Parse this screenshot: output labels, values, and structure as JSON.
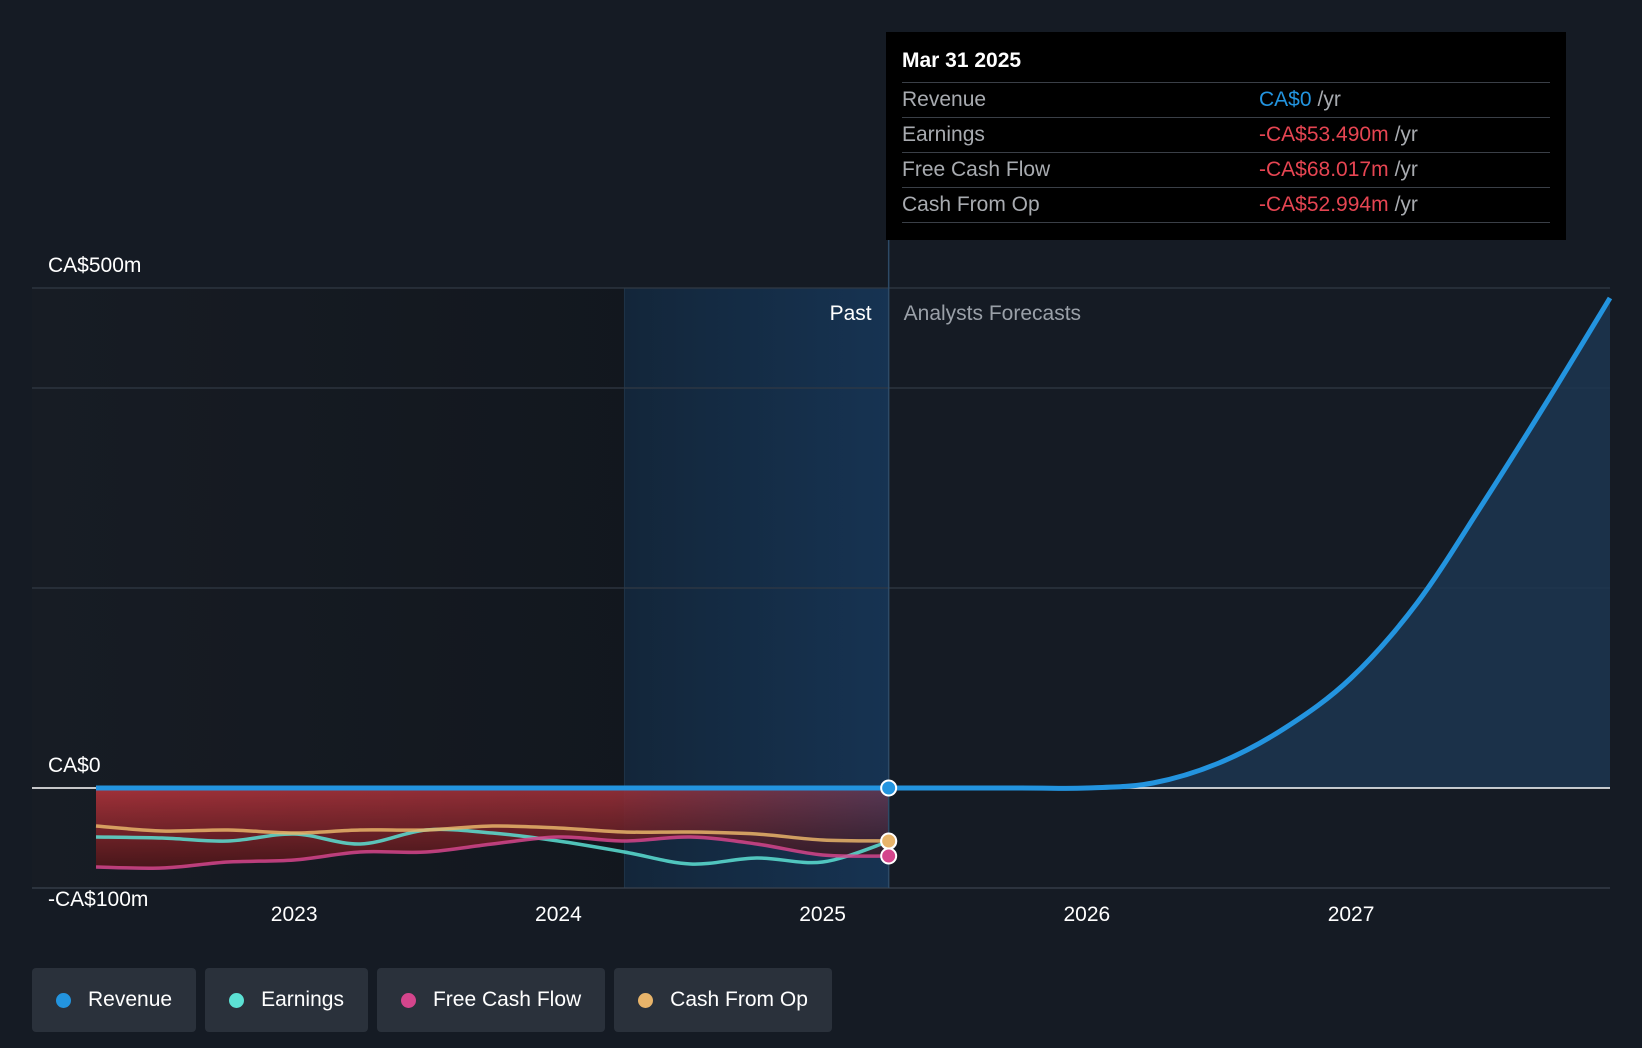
{
  "tooltip": {
    "date": "Mar 31 2025",
    "rows": [
      {
        "label": "Revenue",
        "value": "CA$0",
        "unit": "/yr",
        "color": "#2394df"
      },
      {
        "label": "Earnings",
        "value": "-CA$53.490m",
        "unit": "/yr",
        "color": "#e64552"
      },
      {
        "label": "Free Cash Flow",
        "value": "-CA$68.017m",
        "unit": "/yr",
        "color": "#e64552"
      },
      {
        "label": "Cash From Op",
        "value": "-CA$52.994m",
        "unit": "/yr",
        "color": "#e64552"
      }
    ]
  },
  "legend": [
    {
      "label": "Revenue",
      "color": "#2394df"
    },
    {
      "label": "Earnings",
      "color": "#5ce1d4"
    },
    {
      "label": "Free Cash Flow",
      "color": "#d4458c"
    },
    {
      "label": "Cash From Op",
      "color": "#e8b46a"
    }
  ],
  "chart_data": {
    "type": "line",
    "y_axis_labels": [
      "CA$500m",
      "CA$0",
      "-CA$100m"
    ],
    "ylim": [
      -100,
      500
    ],
    "xlim": [
      2022.25,
      2027.98
    ],
    "x_ticks": [
      2023,
      2024,
      2025,
      2026,
      2027
    ],
    "x_tick_labels": [
      "2023",
      "2024",
      "2025",
      "2026",
      "2027"
    ],
    "past_label": "Past",
    "forecast_label": "Analysts Forecasts",
    "current_date": 2025.25,
    "highlight_start": 2024.25,
    "grid": true,
    "legend_position": "bottom",
    "series": [
      {
        "name": "Revenue",
        "color": "#2394df",
        "points": [
          [
            2022.25,
            0
          ],
          [
            2023.0,
            0
          ],
          [
            2024.0,
            0
          ],
          [
            2025.25,
            0
          ],
          [
            2025.75,
            0
          ],
          [
            2026.0,
            0
          ],
          [
            2026.25,
            5
          ],
          [
            2026.5,
            25
          ],
          [
            2026.75,
            60
          ],
          [
            2027.0,
            110
          ],
          [
            2027.25,
            185
          ],
          [
            2027.5,
            285
          ],
          [
            2027.75,
            390
          ],
          [
            2027.98,
            490
          ]
        ]
      },
      {
        "name": "Earnings",
        "color": "#5ce1d4",
        "points": [
          [
            2022.25,
            -49
          ],
          [
            2022.5,
            -50
          ],
          [
            2022.75,
            -53
          ],
          [
            2023.0,
            -46
          ],
          [
            2023.25,
            -56
          ],
          [
            2023.5,
            -42
          ],
          [
            2023.75,
            -45
          ],
          [
            2024.0,
            -53
          ],
          [
            2024.25,
            -64
          ],
          [
            2024.5,
            -76
          ],
          [
            2024.75,
            -70
          ],
          [
            2025.0,
            -74
          ],
          [
            2025.25,
            -53.49
          ]
        ]
      },
      {
        "name": "Free Cash Flow",
        "color": "#d4458c",
        "points": [
          [
            2022.25,
            -79
          ],
          [
            2022.5,
            -80
          ],
          [
            2022.75,
            -74
          ],
          [
            2023.0,
            -72
          ],
          [
            2023.25,
            -64
          ],
          [
            2023.5,
            -64
          ],
          [
            2023.75,
            -56
          ],
          [
            2024.0,
            -49
          ],
          [
            2024.25,
            -53
          ],
          [
            2024.5,
            -49
          ],
          [
            2024.75,
            -56
          ],
          [
            2025.0,
            -67
          ],
          [
            2025.25,
            -68.02
          ]
        ]
      },
      {
        "name": "Cash From Op",
        "color": "#e8b46a",
        "points": [
          [
            2022.25,
            -38
          ],
          [
            2022.5,
            -43
          ],
          [
            2022.75,
            -42
          ],
          [
            2023.0,
            -45
          ],
          [
            2023.25,
            -42
          ],
          [
            2023.5,
            -42
          ],
          [
            2023.75,
            -38
          ],
          [
            2024.0,
            -40
          ],
          [
            2024.25,
            -44
          ],
          [
            2024.5,
            -44
          ],
          [
            2024.75,
            -46
          ],
          [
            2025.0,
            -52
          ],
          [
            2025.25,
            -52.99
          ]
        ]
      }
    ]
  }
}
